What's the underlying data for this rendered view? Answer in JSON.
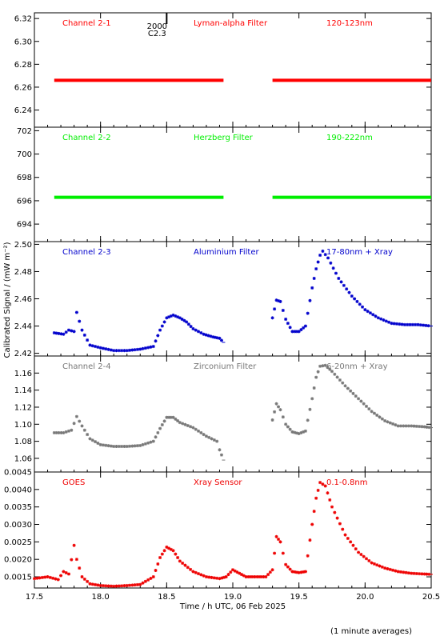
{
  "chart_data": {
    "type": "scatter",
    "shared_x": {
      "xlabel": "Time / h UTC, 06 Feb 2025",
      "xlim": [
        17.5,
        20.5
      ],
      "xticks": [
        17.5,
        18.0,
        18.5,
        19.0,
        19.5,
        20.0,
        20.5
      ],
      "xtick_labels": [
        "17.5",
        "18.0",
        "18.5",
        "19.0",
        "19.5",
        "20.0",
        "20.5"
      ]
    },
    "ylabel": "Calibrated Signal / (mW m⁻²)",
    "footnote": "(1 minute averages)",
    "panels": [
      {
        "id": "ch21",
        "labels": [
          "Channel 2-1",
          "Lyman-alpha Filter",
          "120-123nm"
        ],
        "color": "#ff0000",
        "ylim": [
          6.225,
          6.325
        ],
        "yticks": [
          6.24,
          6.26,
          6.28,
          6.3,
          6.32
        ],
        "ytick_labels": [
          "6.24",
          "6.26",
          "6.28",
          "6.30",
          "6.32"
        ],
        "marker": "line",
        "segments": [
          {
            "x": [
              17.65,
              18.0,
              18.5,
              18.93
            ],
            "y": [
              6.266,
              6.266,
              6.266,
              6.266
            ]
          },
          {
            "x": [
              19.3,
              19.75,
              20.2,
              20.5
            ],
            "y": [
              6.266,
              6.266,
              6.266,
              6.266
            ]
          }
        ]
      },
      {
        "id": "ch22",
        "labels": [
          "Channel 2-2",
          "Herzberg Filter",
          "190-222nm"
        ],
        "color": "#00ee00",
        "ylim": [
          692.5,
          702.3
        ],
        "yticks": [
          694,
          696,
          698,
          700,
          702
        ],
        "ytick_labels": [
          "694",
          "696",
          "698",
          "700",
          "702"
        ],
        "marker": "line",
        "segments": [
          {
            "x": [
              17.65,
              18.0,
              18.5,
              18.93
            ],
            "y": [
              696.3,
              696.3,
              696.3,
              696.3
            ]
          },
          {
            "x": [
              19.3,
              19.75,
              20.2,
              20.5
            ],
            "y": [
              696.3,
              696.3,
              696.3,
              696.3
            ]
          }
        ]
      },
      {
        "id": "ch23",
        "labels": [
          "Channel 2-3",
          "Aluminium Filter",
          "17-80nm + Xray"
        ],
        "color": "#0000cc",
        "ylim": [
          2.418,
          2.502
        ],
        "yticks": [
          2.42,
          2.44,
          2.46,
          2.48,
          2.5
        ],
        "ytick_labels": [
          "2.42",
          "2.44",
          "2.46",
          "2.48",
          "2.50"
        ],
        "marker": "star",
        "segments": [
          {
            "x": [
              17.65,
              17.72,
              17.76,
              17.8,
              17.82,
              17.86,
              17.92,
              18.0,
              18.1,
              18.2,
              18.3,
              18.4,
              18.45,
              18.5,
              18.55,
              18.6,
              18.65,
              18.7,
              18.78,
              18.85,
              18.9,
              18.93
            ],
            "y": [
              2.435,
              2.434,
              2.437,
              2.436,
              2.45,
              2.437,
              2.426,
              2.424,
              2.422,
              2.422,
              2.423,
              2.425,
              2.437,
              2.446,
              2.448,
              2.446,
              2.443,
              2.438,
              2.434,
              2.432,
              2.431,
              2.428
            ]
          },
          {
            "x": [
              19.3,
              19.33,
              19.36,
              19.4,
              19.45,
              19.5,
              19.55,
              19.6,
              19.63,
              19.66,
              19.68,
              19.72,
              19.8,
              19.9,
              20.0,
              20.1,
              20.2,
              20.3,
              20.4,
              20.5
            ],
            "y": [
              2.446,
              2.459,
              2.458,
              2.445,
              2.436,
              2.436,
              2.44,
              2.468,
              2.482,
              2.492,
              2.495,
              2.49,
              2.475,
              2.462,
              2.452,
              2.446,
              2.442,
              2.441,
              2.441,
              2.44
            ]
          }
        ]
      },
      {
        "id": "ch24",
        "labels": [
          "Channel 2-4",
          "Zirconium Filter",
          "6-20nm + Xray"
        ],
        "color": "#777777",
        "ylim": [
          1.044,
          1.18
        ],
        "yticks": [
          1.06,
          1.08,
          1.1,
          1.12,
          1.14,
          1.16
        ],
        "ytick_labels": [
          "1.06",
          "1.08",
          "1.10",
          "1.12",
          "1.14",
          "1.16"
        ],
        "marker": "star",
        "segments": [
          {
            "x": [
              17.65,
              17.72,
              17.78,
              17.82,
              17.86,
              17.92,
              18.0,
              18.1,
              18.2,
              18.3,
              18.4,
              18.45,
              18.5,
              18.55,
              18.6,
              18.7,
              18.8,
              18.88,
              18.9,
              18.93
            ],
            "y": [
              1.09,
              1.09,
              1.093,
              1.109,
              1.098,
              1.083,
              1.076,
              1.074,
              1.074,
              1.075,
              1.08,
              1.095,
              1.108,
              1.108,
              1.102,
              1.096,
              1.086,
              1.08,
              1.07,
              1.058
            ]
          },
          {
            "x": [
              19.3,
              19.33,
              19.36,
              19.4,
              19.45,
              19.5,
              19.55,
              19.6,
              19.63,
              19.66,
              19.7,
              19.75,
              19.85,
              19.95,
              20.05,
              20.15,
              20.25,
              20.35,
              20.45,
              20.5
            ],
            "y": [
              1.105,
              1.124,
              1.117,
              1.1,
              1.091,
              1.089,
              1.092,
              1.13,
              1.155,
              1.168,
              1.169,
              1.162,
              1.145,
              1.13,
              1.115,
              1.104,
              1.098,
              1.098,
              1.097,
              1.096
            ]
          }
        ]
      },
      {
        "id": "goes",
        "labels": [
          "GOES",
          "Xray Sensor",
          "0.1-0.8nm"
        ],
        "color": "#ee0000",
        "ylim": [
          0.00118,
          0.0045
        ],
        "yticks": [
          0.0015,
          0.002,
          0.0025,
          0.003,
          0.0035,
          0.004,
          0.0045
        ],
        "ytick_labels": [
          "0.0015",
          "0.0020",
          "0.0025",
          "0.0030",
          "0.0035",
          "0.0040",
          "0.0045"
        ],
        "marker": "star",
        "segments": [
          {
            "x": [
              17.5,
              17.6,
              17.68,
              17.72,
              17.76,
              17.8,
              17.82,
              17.86,
              17.92,
              18.0,
              18.1,
              18.2,
              18.3,
              18.4,
              18.45,
              18.5,
              18.55,
              18.6,
              18.7,
              18.8,
              18.9,
              18.95,
              19.0,
              19.05,
              19.1,
              19.15,
              19.2,
              19.25,
              19.3,
              19.33,
              19.36,
              19.4,
              19.45,
              19.5,
              19.55,
              19.6,
              19.63,
              19.66,
              19.7,
              19.75,
              19.85,
              19.95,
              20.05,
              20.15,
              20.25,
              20.35,
              20.45,
              20.5
            ],
            "y": [
              0.00145,
              0.0015,
              0.00142,
              0.00165,
              0.00158,
              0.0024,
              0.002,
              0.0015,
              0.0013,
              0.00125,
              0.00123,
              0.00125,
              0.00128,
              0.0015,
              0.00205,
              0.00235,
              0.00225,
              0.00195,
              0.00165,
              0.0015,
              0.00145,
              0.0015,
              0.0017,
              0.0016,
              0.0015,
              0.0015,
              0.0015,
              0.0015,
              0.0017,
              0.00265,
              0.0025,
              0.00185,
              0.00165,
              0.00162,
              0.00165,
              0.003,
              0.00375,
              0.0042,
              0.0041,
              0.0035,
              0.0027,
              0.0022,
              0.0019,
              0.00175,
              0.00165,
              0.0016,
              0.00158,
              0.00157
            ]
          }
        ]
      }
    ],
    "annotation": {
      "lines": [
        "2000",
        "C2.3"
      ],
      "x": 18.5
    }
  }
}
